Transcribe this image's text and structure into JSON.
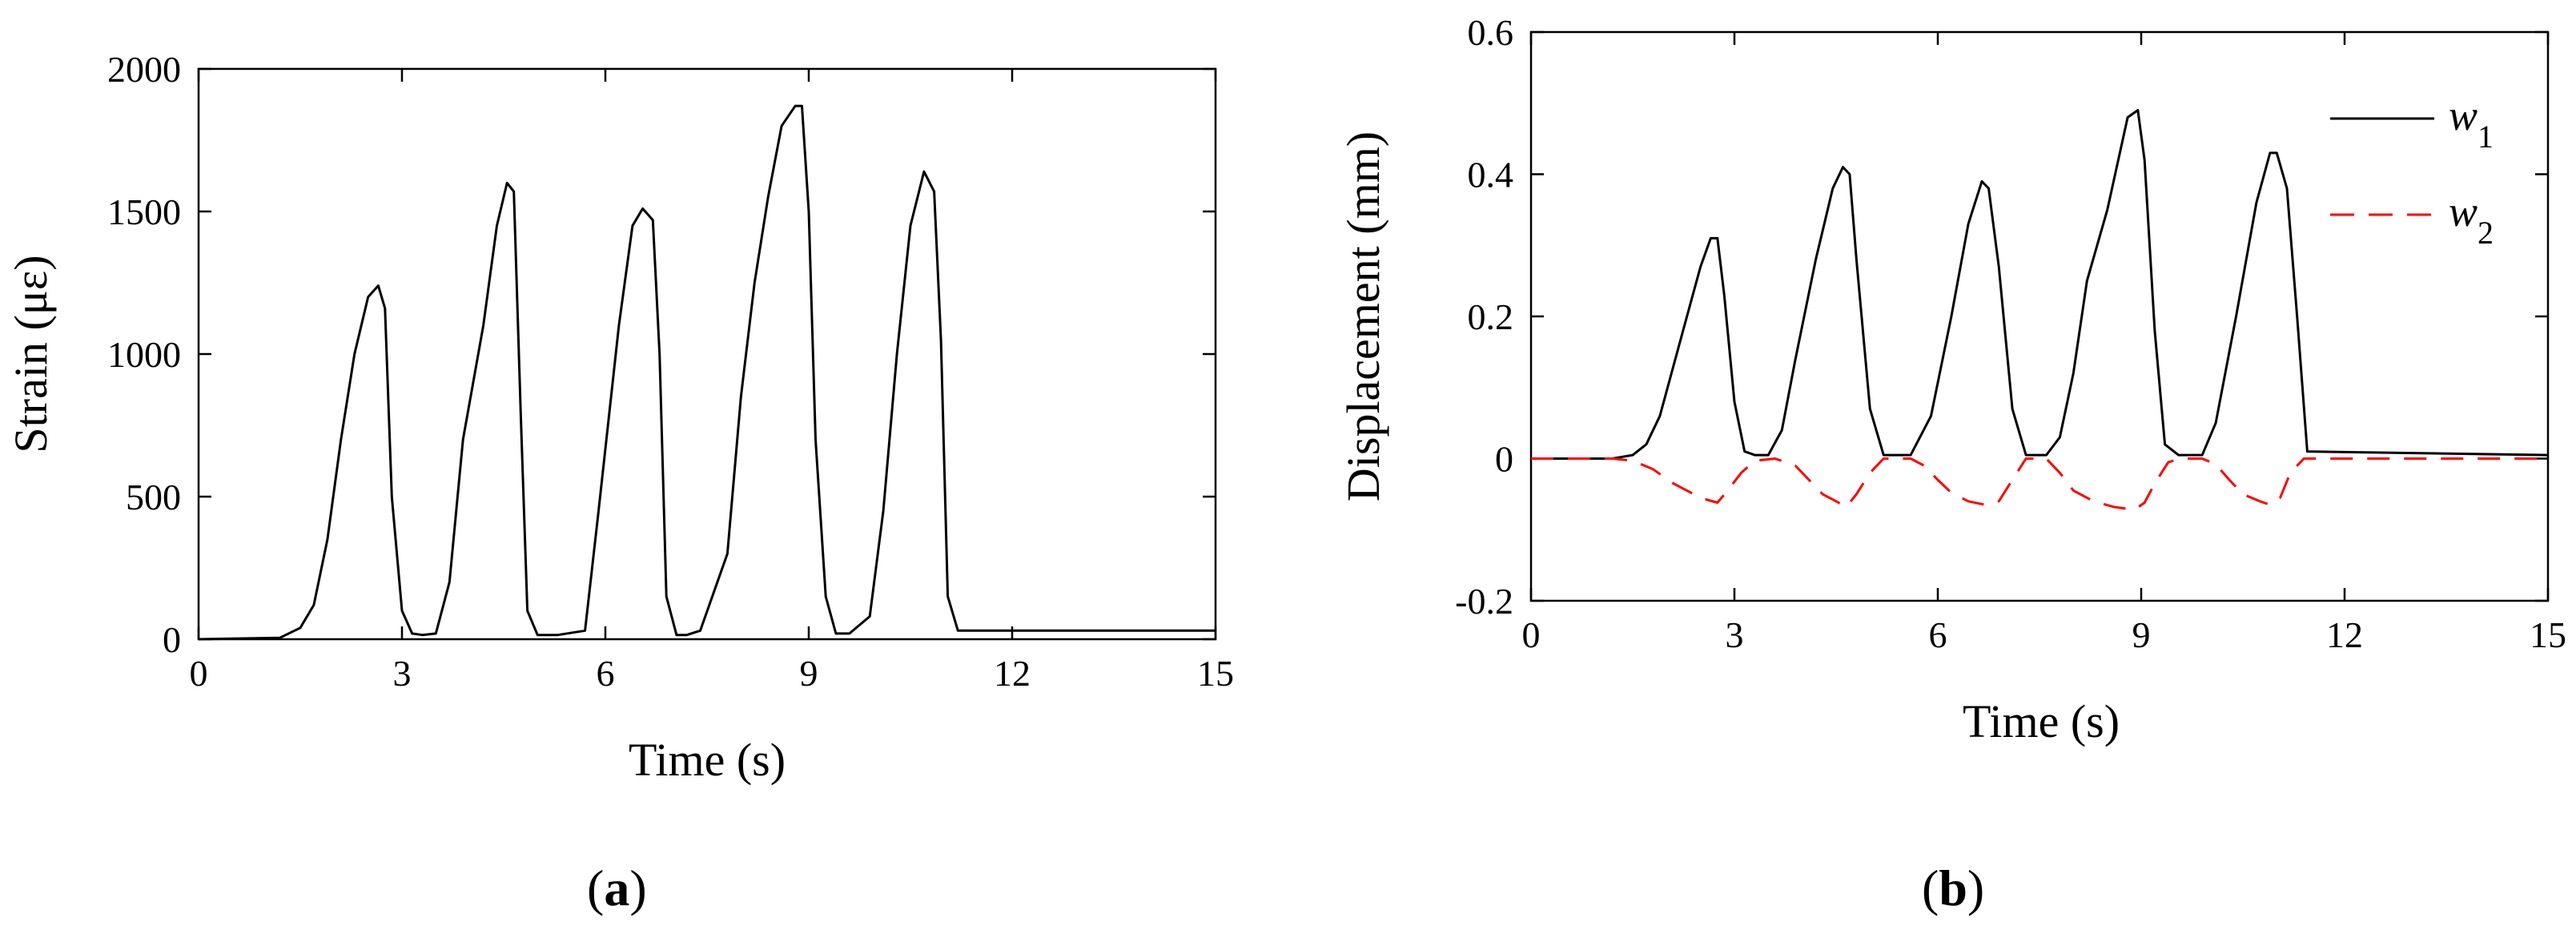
{
  "chart_data": [
    {
      "type": "line",
      "panel_label": "a",
      "xlabel": "Time (s)",
      "ylabel": "Strain (με)",
      "xlim": [
        0,
        15
      ],
      "ylim": [
        0,
        2000
      ],
      "xticks": [
        0,
        3,
        6,
        9,
        12,
        15
      ],
      "yticks": [
        0,
        500,
        1000,
        1500,
        2000
      ],
      "grid": false,
      "legend": null,
      "series": [
        {
          "color": "#000000",
          "dash": "solid",
          "x": [
            0,
            1.2,
            1.5,
            1.7,
            1.9,
            2.1,
            2.3,
            2.5,
            2.65,
            2.75,
            2.85,
            3.0,
            3.15,
            3.3,
            3.5,
            3.7,
            3.9,
            4.2,
            4.4,
            4.55,
            4.65,
            4.75,
            4.85,
            5.0,
            5.15,
            5.3,
            5.7,
            5.9,
            6.2,
            6.4,
            6.55,
            6.7,
            6.8,
            6.9,
            7.05,
            7.2,
            7.4,
            7.8,
            8.0,
            8.2,
            8.4,
            8.6,
            8.8,
            8.9,
            9.0,
            9.1,
            9.25,
            9.4,
            9.6,
            9.9,
            10.1,
            10.3,
            10.5,
            10.7,
            10.85,
            10.95,
            11.05,
            11.2,
            11.35,
            11.5,
            15
          ],
          "y": [
            0,
            5,
            40,
            120,
            350,
            700,
            1000,
            1200,
            1240,
            1160,
            500,
            100,
            20,
            15,
            20,
            200,
            700,
            1100,
            1450,
            1600,
            1570,
            800,
            100,
            15,
            15,
            15,
            30,
            450,
            1100,
            1450,
            1510,
            1470,
            1000,
            150,
            15,
            15,
            30,
            300,
            850,
            1250,
            1550,
            1800,
            1870,
            1870,
            1500,
            700,
            150,
            20,
            20,
            80,
            450,
            1000,
            1450,
            1640,
            1570,
            1050,
            150,
            30,
            30,
            30,
            30
          ]
        }
      ]
    },
    {
      "type": "line",
      "panel_label": "b",
      "xlabel": "Time (s)",
      "ylabel": "Displacement (mm)",
      "xlim": [
        0,
        15
      ],
      "ylim": [
        -0.2,
        0.6
      ],
      "xticks": [
        0,
        3,
        6,
        9,
        12,
        15
      ],
      "yticks": [
        -0.2,
        0,
        0.2,
        0.4,
        0.6
      ],
      "ytick_labels": [
        "-0.2",
        "0",
        "0.2",
        "0.4",
        "0.6"
      ],
      "grid": false,
      "legend": "top-right",
      "series": [
        {
          "name": "w",
          "name_subscript": "1",
          "color": "#000000",
          "dash": "solid",
          "x": [
            0,
            1.2,
            1.5,
            1.7,
            1.9,
            2.1,
            2.3,
            2.5,
            2.65,
            2.75,
            2.85,
            3.0,
            3.15,
            3.3,
            3.5,
            3.7,
            3.9,
            4.2,
            4.45,
            4.6,
            4.7,
            4.8,
            5.0,
            5.2,
            5.6,
            5.9,
            6.2,
            6.45,
            6.65,
            6.75,
            6.9,
            7.1,
            7.3,
            7.6,
            7.8,
            8.0,
            8.2,
            8.5,
            8.8,
            8.95,
            9.05,
            9.2,
            9.35,
            9.55,
            9.9,
            10.1,
            10.4,
            10.7,
            10.9,
            11.0,
            11.15,
            11.3,
            11.45,
            15
          ],
          "y": [
            0,
            0,
            0.005,
            0.02,
            0.06,
            0.13,
            0.2,
            0.27,
            0.31,
            0.31,
            0.23,
            0.08,
            0.01,
            0.005,
            0.005,
            0.04,
            0.14,
            0.28,
            0.38,
            0.41,
            0.4,
            0.28,
            0.07,
            0.005,
            0.005,
            0.06,
            0.2,
            0.33,
            0.39,
            0.38,
            0.27,
            0.07,
            0.005,
            0.005,
            0.03,
            0.12,
            0.25,
            0.35,
            0.48,
            0.49,
            0.42,
            0.18,
            0.02,
            0.005,
            0.005,
            0.05,
            0.2,
            0.36,
            0.43,
            0.43,
            0.38,
            0.2,
            0.01,
            0.005
          ]
        },
        {
          "name": "w",
          "name_subscript": "2",
          "color": "#ff0000",
          "dash": "dashed",
          "x": [
            0,
            1.2,
            1.5,
            1.8,
            2.1,
            2.4,
            2.6,
            2.75,
            2.9,
            3.1,
            3.3,
            3.6,
            3.9,
            4.1,
            4.3,
            4.5,
            4.65,
            4.8,
            5.0,
            5.2,
            5.6,
            5.8,
            6.0,
            6.2,
            6.45,
            6.7,
            6.9,
            7.1,
            7.3,
            7.6,
            7.8,
            8.0,
            8.3,
            8.6,
            8.9,
            9.05,
            9.2,
            9.4,
            9.6,
            9.9,
            10.1,
            10.3,
            10.5,
            10.75,
            10.9,
            11.05,
            11.2,
            11.4,
            11.6,
            15
          ],
          "y": [
            0,
            0,
            -0.003,
            -0.015,
            -0.035,
            -0.05,
            -0.058,
            -0.062,
            -0.045,
            -0.02,
            -0.003,
            0,
            -0.01,
            -0.03,
            -0.05,
            -0.06,
            -0.068,
            -0.05,
            -0.02,
            0,
            0,
            -0.01,
            -0.03,
            -0.048,
            -0.06,
            -0.065,
            -0.06,
            -0.03,
            0,
            0,
            -0.02,
            -0.045,
            -0.06,
            -0.068,
            -0.072,
            -0.062,
            -0.035,
            -0.005,
            0,
            0,
            -0.008,
            -0.03,
            -0.05,
            -0.06,
            -0.065,
            -0.055,
            -0.02,
            0,
            0,
            0
          ]
        }
      ]
    }
  ]
}
